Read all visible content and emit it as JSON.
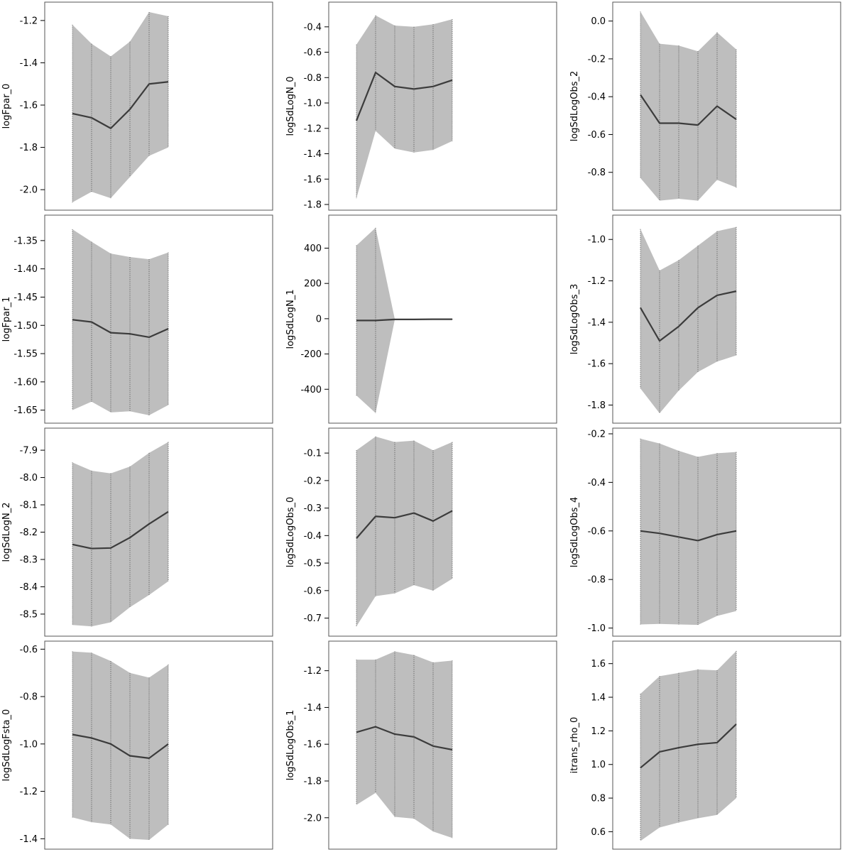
{
  "chart_data": [
    {
      "type": "area",
      "ylabel": "logFpar_0",
      "ylim": [
        -2.07,
        -1.14
      ],
      "yticks": [
        "-1.2",
        "-1.4",
        "-1.6",
        "-1.8",
        "-2.0"
      ],
      "yticks_values": [
        -1.2,
        -1.4,
        -1.6,
        -1.8,
        -2.0
      ],
      "grid": false,
      "x": [
        1,
        2,
        3,
        4,
        5,
        6
      ],
      "series": [
        {
          "role": "estimate",
          "values": [
            -1.64,
            -1.66,
            -1.71,
            -1.62,
            -1.5,
            -1.49
          ]
        },
        {
          "role": "upper",
          "values": [
            -1.22,
            -1.31,
            -1.37,
            -1.3,
            -1.16,
            -1.18
          ]
        },
        {
          "role": "lower",
          "values": [
            -2.06,
            -2.01,
            -2.04,
            -1.94,
            -1.84,
            -1.8
          ]
        }
      ]
    },
    {
      "type": "area",
      "ylabel": "logSdLogN_0",
      "ylim": [
        -1.8,
        -0.25
      ],
      "yticks": [
        "-0.4",
        "-0.6",
        "-0.8",
        "-1.0",
        "-1.2",
        "-1.4",
        "-1.6",
        "-1.8"
      ],
      "yticks_values": [
        -0.4,
        -0.6,
        -0.8,
        -1.0,
        -1.2,
        -1.4,
        -1.6,
        -1.8
      ],
      "grid": false,
      "x": [
        1,
        2,
        3,
        4,
        5,
        6
      ],
      "series": [
        {
          "role": "estimate",
          "values": [
            -1.14,
            -0.76,
            -0.87,
            -0.89,
            -0.87,
            -0.82
          ]
        },
        {
          "role": "upper",
          "values": [
            -0.54,
            -0.31,
            -0.39,
            -0.4,
            -0.38,
            -0.34
          ]
        },
        {
          "role": "lower",
          "values": [
            -1.75,
            -1.22,
            -1.36,
            -1.39,
            -1.37,
            -1.3
          ]
        }
      ]
    },
    {
      "type": "area",
      "ylabel": "logSdLogObs_2",
      "ylim": [
        -0.97,
        0.07
      ],
      "yticks": [
        "0.0",
        "-0.2",
        "-0.4",
        "-0.6",
        "-0.8"
      ],
      "yticks_values": [
        0.0,
        -0.2,
        -0.4,
        -0.6,
        -0.8
      ],
      "grid": false,
      "x": [
        1,
        2,
        3,
        4,
        5,
        6
      ],
      "series": [
        {
          "role": "estimate",
          "values": [
            -0.39,
            -0.54,
            -0.54,
            -0.55,
            -0.45,
            -0.52
          ]
        },
        {
          "role": "upper",
          "values": [
            0.05,
            -0.12,
            -0.13,
            -0.16,
            -0.06,
            -0.15
          ]
        },
        {
          "role": "lower",
          "values": [
            -0.83,
            -0.95,
            -0.94,
            -0.95,
            -0.84,
            -0.88
          ]
        }
      ]
    },
    {
      "type": "area",
      "ylabel": "logFpar_1",
      "ylim": [
        -1.663,
        -1.315
      ],
      "yticks": [
        "-1.35",
        "-1.40",
        "-1.45",
        "-1.50",
        "-1.55",
        "-1.60",
        "-1.65"
      ],
      "yticks_values": [
        -1.35,
        -1.4,
        -1.45,
        -1.5,
        -1.55,
        -1.6,
        -1.65
      ],
      "grid": false,
      "x": [
        1,
        2,
        3,
        4,
        5,
        6
      ],
      "series": [
        {
          "role": "estimate",
          "values": [
            -1.49,
            -1.494,
            -1.513,
            -1.515,
            -1.521,
            -1.506
          ]
        },
        {
          "role": "upper",
          "values": [
            -1.33,
            -1.352,
            -1.373,
            -1.379,
            -1.383,
            -1.371
          ]
        },
        {
          "role": "lower",
          "values": [
            -1.65,
            -1.635,
            -1.654,
            -1.652,
            -1.659,
            -1.641
          ]
        }
      ]
    },
    {
      "type": "area",
      "ylabel": "logSdLogN_1",
      "ylim": [
        -560,
        555
      ],
      "yticks": [
        "400",
        "200",
        "0",
        "-200",
        "-400"
      ],
      "yticks_values": [
        400,
        200,
        0,
        -200,
        -400
      ],
      "grid": false,
      "x": [
        1,
        2,
        3,
        4,
        5,
        6
      ],
      "series": [
        {
          "role": "estimate",
          "values": [
            -10,
            -10,
            -4,
            -4,
            -3,
            -3
          ]
        },
        {
          "role": "upper",
          "values": [
            415,
            515,
            -2,
            -2,
            -1,
            -1
          ]
        },
        {
          "role": "lower",
          "values": [
            -435,
            -535,
            -6,
            -6,
            -5,
            -5
          ]
        }
      ]
    },
    {
      "type": "area",
      "ylabel": "logSdLogObs_3",
      "ylim": [
        -1.86,
        -0.91
      ],
      "yticks": [
        "-1.0",
        "-1.2",
        "-1.4",
        "-1.6",
        "-1.8"
      ],
      "yticks_values": [
        -1.0,
        -1.2,
        -1.4,
        -1.6,
        -1.8
      ],
      "grid": false,
      "x": [
        1,
        2,
        3,
        4,
        5,
        6
      ],
      "series": [
        {
          "role": "estimate",
          "values": [
            -1.33,
            -1.49,
            -1.42,
            -1.33,
            -1.27,
            -1.25
          ]
        },
        {
          "role": "upper",
          "values": [
            -0.95,
            -1.15,
            -1.1,
            -1.03,
            -0.96,
            -0.94
          ]
        },
        {
          "role": "lower",
          "values": [
            -1.72,
            -1.84,
            -1.73,
            -1.64,
            -1.59,
            -1.56
          ]
        }
      ]
    },
    {
      "type": "area",
      "ylabel": "logSdLogN_2",
      "ylim": [
        -8.56,
        -7.84
      ],
      "yticks": [
        "-7.9",
        "-8.0",
        "-8.1",
        "-8.2",
        "-8.3",
        "-8.4",
        "-8.5"
      ],
      "yticks_values": [
        -7.9,
        -8.0,
        -8.1,
        -8.2,
        -8.3,
        -8.4,
        -8.5
      ],
      "grid": false,
      "x": [
        1,
        2,
        3,
        4,
        5,
        6
      ],
      "series": [
        {
          "role": "estimate",
          "values": [
            -8.245,
            -8.26,
            -8.258,
            -8.22,
            -8.17,
            -8.125
          ]
        },
        {
          "role": "upper",
          "values": [
            -7.945,
            -7.975,
            -7.985,
            -7.96,
            -7.91,
            -7.87
          ]
        },
        {
          "role": "lower",
          "values": [
            -8.54,
            -8.545,
            -8.53,
            -8.475,
            -8.43,
            -8.38
          ]
        }
      ]
    },
    {
      "type": "area",
      "ylabel": "logSdLogObs_0",
      "ylim": [
        -0.745,
        -0.03
      ],
      "yticks": [
        "-0.1",
        "-0.2",
        "-0.3",
        "-0.4",
        "-0.5",
        "-0.6",
        "-0.7"
      ],
      "yticks_values": [
        -0.1,
        -0.2,
        -0.3,
        -0.4,
        -0.5,
        -0.6,
        -0.7
      ],
      "grid": false,
      "x": [
        1,
        2,
        3,
        4,
        5,
        6
      ],
      "series": [
        {
          "role": "estimate",
          "values": [
            -0.41,
            -0.33,
            -0.335,
            -0.318,
            -0.347,
            -0.31
          ]
        },
        {
          "role": "upper",
          "values": [
            -0.09,
            -0.04,
            -0.06,
            -0.055,
            -0.09,
            -0.06
          ]
        },
        {
          "role": "lower",
          "values": [
            -0.73,
            -0.62,
            -0.61,
            -0.58,
            -0.6,
            -0.557
          ]
        }
      ]
    },
    {
      "type": "area",
      "ylabel": "logSdLogObs_4",
      "ylim": [
        -1.01,
        -0.2
      ],
      "yticks": [
        "-0.2",
        "-0.4",
        "-0.6",
        "-0.8",
        "-1.0"
      ],
      "yticks_values": [
        -0.2,
        -0.4,
        -0.6,
        -0.8,
        -1.0
      ],
      "grid": false,
      "x": [
        1,
        2,
        3,
        4,
        5,
        6
      ],
      "series": [
        {
          "role": "estimate",
          "values": [
            -0.6,
            -0.61,
            -0.625,
            -0.64,
            -0.615,
            -0.6
          ]
        },
        {
          "role": "upper",
          "values": [
            -0.22,
            -0.24,
            -0.27,
            -0.295,
            -0.28,
            -0.275
          ]
        },
        {
          "role": "lower",
          "values": [
            -0.985,
            -0.983,
            -0.985,
            -0.987,
            -0.95,
            -0.93
          ]
        }
      ]
    },
    {
      "type": "area",
      "ylabel": "logSdLogFsta_0",
      "ylim": [
        -1.42,
        -0.59
      ],
      "yticks": [
        "-0.6",
        "-0.8",
        "-1.0",
        "-1.2",
        "-1.4"
      ],
      "yticks_values": [
        -0.6,
        -0.8,
        -1.0,
        -1.2,
        -1.4
      ],
      "grid": false,
      "x": [
        1,
        2,
        3,
        4,
        5,
        6
      ],
      "series": [
        {
          "role": "estimate",
          "values": [
            -0.96,
            -0.975,
            -1.0,
            -1.05,
            -1.06,
            -1.0
          ]
        },
        {
          "role": "upper",
          "values": [
            -0.61,
            -0.615,
            -0.65,
            -0.7,
            -0.72,
            -0.665
          ]
        },
        {
          "role": "lower",
          "values": [
            -1.31,
            -1.33,
            -1.34,
            -1.4,
            -1.405,
            -1.34
          ]
        }
      ]
    },
    {
      "type": "area",
      "ylabel": "logSdLogObs_1",
      "ylim": [
        -2.14,
        -1.07
      ],
      "yticks": [
        "-1.2",
        "-1.4",
        "-1.6",
        "-1.8",
        "-2.0"
      ],
      "yticks_values": [
        -1.2,
        -1.4,
        -1.6,
        -1.8,
        -2.0
      ],
      "grid": false,
      "x": [
        1,
        2,
        3,
        4,
        5,
        6
      ],
      "series": [
        {
          "role": "estimate",
          "values": [
            -1.535,
            -1.505,
            -1.545,
            -1.56,
            -1.61,
            -1.63
          ]
        },
        {
          "role": "upper",
          "values": [
            -1.14,
            -1.14,
            -1.095,
            -1.115,
            -1.155,
            -1.145
          ]
        },
        {
          "role": "lower",
          "values": [
            -1.93,
            -1.865,
            -1.995,
            -2.005,
            -2.075,
            -2.11
          ]
        }
      ]
    },
    {
      "type": "area",
      "ylabel": "itrans_rho_0",
      "ylim": [
        0.53,
        1.7
      ],
      "yticks": [
        "1.6",
        "1.4",
        "1.2",
        "1.0",
        "0.8",
        "0.6"
      ],
      "yticks_values": [
        1.6,
        1.4,
        1.2,
        1.0,
        0.8,
        0.6
      ],
      "grid": false,
      "x": [
        1,
        2,
        3,
        4,
        5,
        6
      ],
      "series": [
        {
          "role": "estimate",
          "values": [
            0.98,
            1.075,
            1.1,
            1.12,
            1.13,
            1.24
          ]
        },
        {
          "role": "upper",
          "values": [
            1.42,
            1.525,
            1.545,
            1.565,
            1.56,
            1.675
          ]
        },
        {
          "role": "lower",
          "values": [
            0.545,
            0.625,
            0.655,
            0.68,
            0.7,
            0.8
          ]
        }
      ]
    }
  ],
  "colors": {
    "band_fill": "#bebebe",
    "estimate_line": "#3c3c3c",
    "dotted_line": "#4d4d4d",
    "frame": "#555555",
    "background": "#ffffff"
  }
}
